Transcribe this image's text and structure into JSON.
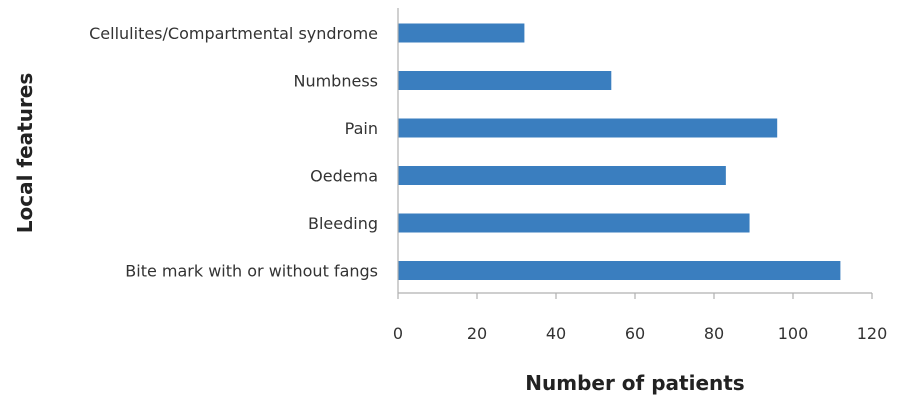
{
  "chart_data": {
    "type": "bar",
    "orientation": "horizontal",
    "title": "",
    "xlabel": "Number of patients",
    "ylabel": "Local features",
    "categories": [
      "Cellulites/Compartmental syndrome",
      "Numbness",
      "Pain",
      "Oedema",
      "Bleeding",
      "Bite mark with or without fangs"
    ],
    "values": [
      32,
      54,
      96,
      83,
      89,
      112
    ],
    "xlim": [
      0,
      120
    ],
    "xticks": [
      "0",
      "20",
      "40",
      "60",
      "80",
      "100",
      "120"
    ],
    "grid": false,
    "legend": "none",
    "bar_color": "#3a7ebf",
    "axis_color": "#b0b0b0"
  }
}
